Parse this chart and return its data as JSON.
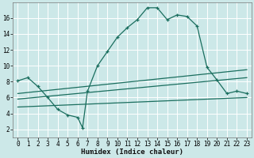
{
  "background_color": "#cce8e8",
  "grid_color": "#b0d8d8",
  "line_color": "#1a6e5e",
  "xlabel": "Humidex (Indice chaleur)",
  "x_ticks": [
    0,
    1,
    2,
    3,
    4,
    5,
    6,
    7,
    8,
    9,
    10,
    11,
    12,
    13,
    14,
    15,
    16,
    17,
    18,
    19,
    20,
    21,
    22,
    23
  ],
  "y_ticks": [
    2,
    4,
    6,
    8,
    10,
    12,
    14,
    16
  ],
  "xlim": [
    -0.5,
    23.5
  ],
  "ylim": [
    1.0,
    18.0
  ],
  "curve1_x": [
    0,
    1,
    2,
    3,
    4,
    5,
    6,
    6.5,
    7,
    8,
    9,
    10,
    11,
    12,
    13,
    14,
    15,
    16,
    17,
    18,
    19,
    20,
    21,
    22,
    23
  ],
  "curve1_y": [
    8.1,
    8.5,
    7.4,
    6.0,
    4.5,
    3.8,
    3.5,
    2.2,
    6.8,
    10.0,
    11.8,
    13.6,
    14.8,
    15.8,
    17.3,
    17.3,
    15.8,
    16.4,
    16.2,
    15.0,
    9.8,
    8.2,
    6.5,
    6.8,
    6.5
  ],
  "curve2_x": [
    0,
    23
  ],
  "curve2_y": [
    6.5,
    9.5
  ],
  "curve3_x": [
    0,
    23
  ],
  "curve3_y": [
    5.8,
    8.5
  ],
  "curve4_x": [
    0,
    23
  ],
  "curve4_y": [
    4.8,
    6.0
  ],
  "marker": "+"
}
